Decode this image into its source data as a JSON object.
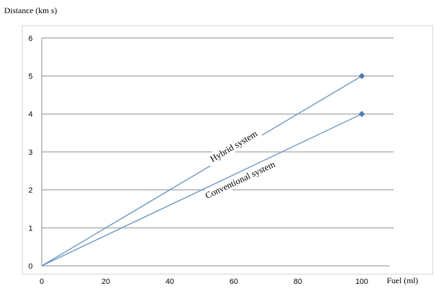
{
  "chart_data": {
    "type": "line",
    "title": "",
    "xlabel": "Fuel (ml)",
    "ylabel": "Distance (km s)",
    "xlim": [
      0,
      110
    ],
    "ylim": [
      0,
      6
    ],
    "x_ticks": [
      0,
      20,
      40,
      60,
      80,
      100
    ],
    "y_ticks": [
      0,
      1,
      2,
      3,
      4,
      5,
      6
    ],
    "grid": "horizontal",
    "legend": "none",
    "series": [
      {
        "name": "Hybrid system",
        "color": "#5b8fd6",
        "marker": "diamond",
        "points": [
          [
            0,
            0
          ],
          [
            100,
            5
          ]
        ]
      },
      {
        "name": "Conventional system",
        "color": "#5b8fd6",
        "marker": "diamond",
        "points": [
          [
            0,
            0
          ],
          [
            100,
            4
          ]
        ]
      }
    ],
    "annotations": [
      {
        "text": "Hybrid system",
        "series": 0
      },
      {
        "text": "Conventional system",
        "series": 1
      }
    ]
  }
}
